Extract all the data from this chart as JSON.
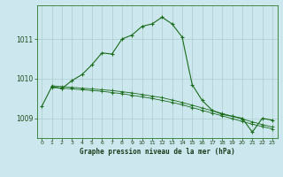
{
  "title": "Graphe pression niveau de la mer (hPa)",
  "background_color": "#cce8ee",
  "grid_color": "#aacccc",
  "line_color": "#1a6b1a",
  "xlim": [
    -0.5,
    23.5
  ],
  "ylim": [
    1008.5,
    1011.85
  ],
  "yticks": [
    1009,
    1010,
    1011
  ],
  "xticks": [
    0,
    1,
    2,
    3,
    4,
    5,
    6,
    7,
    8,
    9,
    10,
    11,
    12,
    13,
    14,
    15,
    16,
    17,
    18,
    19,
    20,
    21,
    22,
    23
  ],
  "series1_x": [
    0,
    1,
    2,
    3,
    4,
    5,
    6,
    7,
    8,
    9,
    10,
    11,
    12,
    13,
    14,
    15,
    16,
    17,
    18,
    19,
    20,
    21,
    22,
    23
  ],
  "series1_y": [
    1009.3,
    1009.8,
    1009.75,
    1009.95,
    1010.1,
    1010.35,
    1010.65,
    1010.62,
    1011.0,
    1011.1,
    1011.32,
    1011.38,
    1011.55,
    1011.38,
    1011.05,
    1009.85,
    1009.45,
    1009.2,
    1009.1,
    1009.05,
    1009.0,
    1008.65,
    1009.0,
    1008.95
  ],
  "series2_x": [
    1,
    2,
    3,
    4,
    5,
    6,
    7,
    8,
    9,
    10,
    11,
    12,
    13,
    14,
    15,
    16,
    17,
    18,
    19,
    20,
    21,
    22,
    23
  ],
  "series2_y": [
    1009.82,
    1009.8,
    1009.78,
    1009.76,
    1009.74,
    1009.72,
    1009.7,
    1009.67,
    1009.64,
    1009.6,
    1009.56,
    1009.52,
    1009.46,
    1009.4,
    1009.33,
    1009.26,
    1009.19,
    1009.12,
    1009.05,
    1008.98,
    1008.91,
    1008.84,
    1008.78
  ],
  "series3_x": [
    1,
    2,
    3,
    4,
    5,
    6,
    7,
    8,
    9,
    10,
    11,
    12,
    13,
    14,
    15,
    16,
    17,
    18,
    19,
    20,
    21,
    22,
    23
  ],
  "series3_y": [
    1009.78,
    1009.76,
    1009.74,
    1009.72,
    1009.7,
    1009.68,
    1009.65,
    1009.62,
    1009.58,
    1009.54,
    1009.5,
    1009.45,
    1009.4,
    1009.34,
    1009.27,
    1009.2,
    1009.13,
    1009.06,
    1008.99,
    1008.92,
    1008.85,
    1008.79,
    1008.73
  ]
}
